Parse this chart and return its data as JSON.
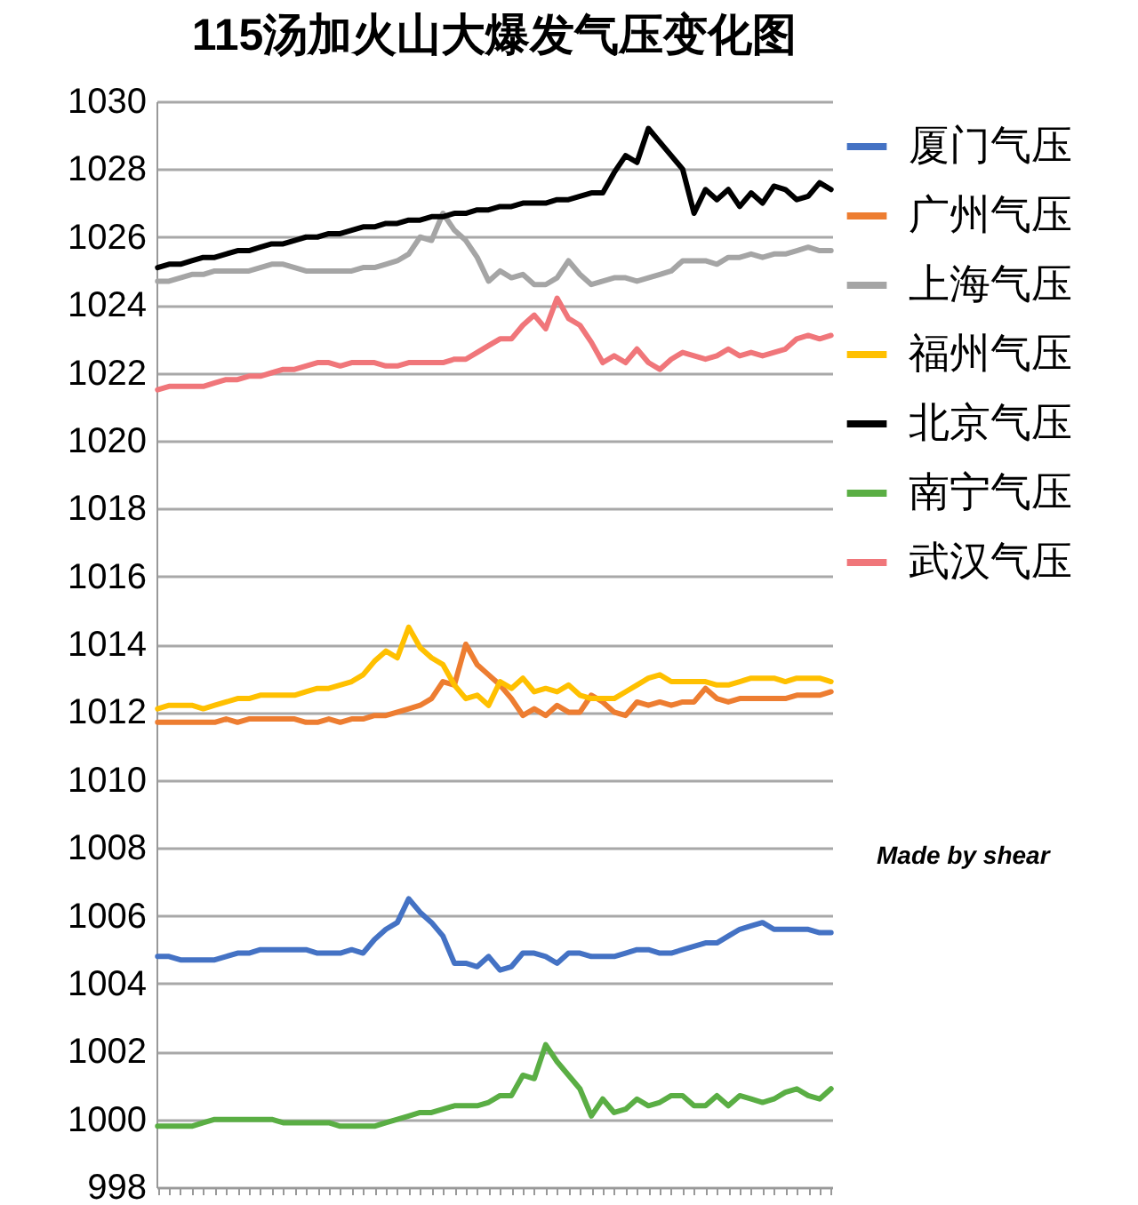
{
  "chart_data": {
    "type": "line",
    "title": "115汤加火山大爆发气压变化图",
    "categories": [
      null,
      null,
      null,
      null,
      null,
      null,
      null,
      null,
      null,
      null,
      null,
      null,
      null,
      null,
      null,
      null,
      null,
      null,
      null,
      null,
      null,
      null,
      null,
      null,
      null,
      null,
      null,
      null,
      null,
      null,
      null,
      null,
      null,
      null,
      null,
      null,
      null,
      null,
      null,
      null,
      null,
      null,
      null,
      null,
      null,
      null,
      null,
      null,
      null,
      null,
      null,
      null,
      null,
      null,
      null,
      null,
      null,
      null,
      null,
      null
    ],
    "ylim": [
      998,
      1030
    ],
    "yticks": [
      998,
      1000,
      1002,
      1004,
      1006,
      1008,
      1010,
      1012,
      1014,
      1016,
      1018,
      1020,
      1022,
      1024,
      1026,
      1028,
      1030
    ],
    "grid": "y",
    "legend": "right",
    "tick_labels": "y",
    "annotations": [
      "Made by shear"
    ],
    "series": [
      {
        "name": "厦门气压",
        "color": "#4472c4",
        "values": [
          1004.8,
          1004.8,
          1004.7,
          1004.7,
          1004.7,
          1004.7,
          1004.8,
          1004.9,
          1004.9,
          1005.0,
          1005.0,
          1005.0,
          1005.0,
          1005.0,
          1004.9,
          1004.9,
          1004.9,
          1005.0,
          1004.9,
          1005.3,
          1005.6,
          1005.8,
          1006.5,
          1006.1,
          1005.8,
          1005.4,
          1004.6,
          1004.6,
          1004.5,
          1004.8,
          1004.4,
          1004.5,
          1004.9,
          1004.9,
          1004.8,
          1004.6,
          1004.9,
          1004.9,
          1004.8,
          1004.8,
          1004.8,
          1004.9,
          1005.0,
          1005.0,
          1004.9,
          1004.9,
          1005.0,
          1005.1,
          1005.2,
          1005.2,
          1005.4,
          1005.6,
          1005.7,
          1005.8,
          1005.6,
          1005.6,
          1005.6,
          1005.6,
          1005.5,
          1005.5
        ]
      },
      {
        "name": "广州气压",
        "color": "#ed7d31",
        "values": [
          1011.7,
          1011.7,
          1011.7,
          1011.7,
          1011.7,
          1011.7,
          1011.8,
          1011.7,
          1011.8,
          1011.8,
          1011.8,
          1011.8,
          1011.8,
          1011.7,
          1011.7,
          1011.8,
          1011.7,
          1011.8,
          1011.8,
          1011.9,
          1011.9,
          1012.0,
          1012.1,
          1012.2,
          1012.4,
          1012.9,
          1012.8,
          1014.0,
          1013.4,
          1013.1,
          1012.8,
          1012.4,
          1011.9,
          1012.1,
          1011.9,
          1012.2,
          1012.0,
          1012.0,
          1012.5,
          1012.3,
          1012.0,
          1011.9,
          1012.3,
          1012.2,
          1012.3,
          1012.2,
          1012.3,
          1012.3,
          1012.7,
          1012.4,
          1012.3,
          1012.4,
          1012.4,
          1012.4,
          1012.4,
          1012.4,
          1012.5,
          1012.5,
          1012.5,
          1012.6
        ]
      },
      {
        "name": "上海气压",
        "color": "#a5a5a5",
        "values": [
          1024.7,
          1024.7,
          1024.8,
          1024.9,
          1024.9,
          1025.0,
          1025.0,
          1025.0,
          1025.0,
          1025.1,
          1025.2,
          1025.2,
          1025.1,
          1025.0,
          1025.0,
          1025.0,
          1025.0,
          1025.0,
          1025.1,
          1025.1,
          1025.2,
          1025.3,
          1025.5,
          1026.0,
          1025.9,
          1026.7,
          1026.2,
          1025.9,
          1025.4,
          1024.7,
          1025.0,
          1024.8,
          1024.9,
          1024.6,
          1024.6,
          1024.8,
          1025.3,
          1024.9,
          1024.6,
          1024.7,
          1024.8,
          1024.8,
          1024.7,
          1024.8,
          1024.9,
          1025.0,
          1025.3,
          1025.3,
          1025.3,
          1025.2,
          1025.4,
          1025.4,
          1025.5,
          1025.4,
          1025.5,
          1025.5,
          1025.6,
          1025.7,
          1025.6,
          1025.6
        ]
      },
      {
        "name": "福州气压",
        "color": "#ffc000",
        "values": [
          1012.1,
          1012.2,
          1012.2,
          1012.2,
          1012.1,
          1012.2,
          1012.3,
          1012.4,
          1012.4,
          1012.5,
          1012.5,
          1012.5,
          1012.5,
          1012.6,
          1012.7,
          1012.7,
          1012.8,
          1012.9,
          1013.1,
          1013.5,
          1013.8,
          1013.6,
          1014.5,
          1013.9,
          1013.6,
          1013.4,
          1012.8,
          1012.4,
          1012.5,
          1012.2,
          1012.9,
          1012.7,
          1013.0,
          1012.6,
          1012.7,
          1012.6,
          1012.8,
          1012.5,
          1012.4,
          1012.4,
          1012.4,
          1012.6,
          1012.8,
          1013.0,
          1013.1,
          1012.9,
          1012.9,
          1012.9,
          1012.9,
          1012.8,
          1012.8,
          1012.9,
          1013.0,
          1013.0,
          1013.0,
          1012.9,
          1013.0,
          1013.0,
          1013.0,
          1012.9
        ]
      },
      {
        "name": "北京气压",
        "color": "#000000",
        "values": [
          1025.1,
          1025.2,
          1025.2,
          1025.3,
          1025.4,
          1025.4,
          1025.5,
          1025.6,
          1025.6,
          1025.7,
          1025.8,
          1025.8,
          1025.9,
          1026.0,
          1026.0,
          1026.1,
          1026.1,
          1026.2,
          1026.3,
          1026.3,
          1026.4,
          1026.4,
          1026.5,
          1026.5,
          1026.6,
          1026.6,
          1026.7,
          1026.7,
          1026.8,
          1026.8,
          1026.9,
          1026.9,
          1027.0,
          1027.0,
          1027.0,
          1027.1,
          1027.1,
          1027.2,
          1027.3,
          1027.3,
          1027.9,
          1028.4,
          1028.2,
          1029.2,
          1028.8,
          1028.4,
          1028.0,
          1026.7,
          1027.4,
          1027.1,
          1027.4,
          1026.9,
          1027.3,
          1027.0,
          1027.5,
          1027.4,
          1027.1,
          1027.2,
          1027.6,
          1027.4
        ]
      },
      {
        "name": "南宁气压",
        "color": "#5aae44",
        "values": [
          999.8,
          999.8,
          999.8,
          999.8,
          999.9,
          1000.0,
          1000.0,
          1000.0,
          1000.0,
          1000.0,
          1000.0,
          999.9,
          999.9,
          999.9,
          999.9,
          999.9,
          999.8,
          999.8,
          999.8,
          999.8,
          999.9,
          1000.0,
          1000.1,
          1000.2,
          1000.2,
          1000.3,
          1000.4,
          1000.4,
          1000.4,
          1000.5,
          1000.7,
          1000.7,
          1001.3,
          1001.2,
          1002.2,
          1001.7,
          1001.3,
          1000.9,
          1000.1,
          1000.6,
          1000.2,
          1000.3,
          1000.6,
          1000.4,
          1000.5,
          1000.7,
          1000.7,
          1000.4,
          1000.4,
          1000.7,
          1000.4,
          1000.7,
          1000.6,
          1000.5,
          1000.6,
          1000.8,
          1000.9,
          1000.7,
          1000.6,
          1000.9
        ]
      },
      {
        "name": "武汉气压",
        "color": "#f0767a",
        "values": [
          1021.5,
          1021.6,
          1021.6,
          1021.6,
          1021.6,
          1021.7,
          1021.8,
          1021.8,
          1021.9,
          1021.9,
          1022.0,
          1022.1,
          1022.1,
          1022.2,
          1022.3,
          1022.3,
          1022.2,
          1022.3,
          1022.3,
          1022.3,
          1022.2,
          1022.2,
          1022.3,
          1022.3,
          1022.3,
          1022.3,
          1022.4,
          1022.4,
          1022.6,
          1022.8,
          1023.0,
          1023.0,
          1023.4,
          1023.7,
          1023.3,
          1024.2,
          1023.6,
          1023.4,
          1022.9,
          1022.3,
          1022.5,
          1022.3,
          1022.7,
          1022.3,
          1022.1,
          1022.4,
          1022.6,
          1022.5,
          1022.4,
          1022.5,
          1022.7,
          1022.5,
          1022.6,
          1022.5,
          1022.6,
          1022.7,
          1023.0,
          1023.1,
          1023.0,
          1023.1
        ]
      }
    ]
  }
}
